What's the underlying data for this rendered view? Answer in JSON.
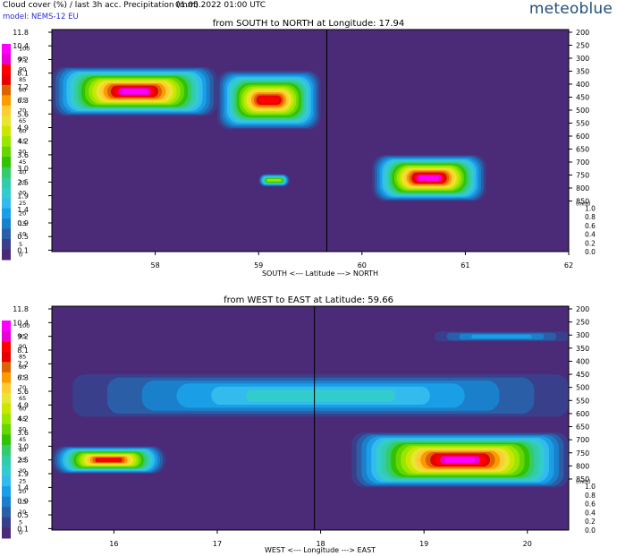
{
  "header": {
    "title": "Cloud cover (%) / last 3h acc. Precipitation (mm)",
    "datetime": "01.05.2022  01:00 UTC",
    "model": "model: NEMS-12 EU",
    "brand": "meteoblue"
  },
  "legend": {
    "levels": [
      "100",
      "95",
      "90",
      "85",
      "80",
      "75",
      "70",
      "65",
      "60",
      "55",
      "50",
      "45",
      "40",
      "35",
      "30",
      "25",
      "20",
      "15",
      "10",
      "5",
      "0"
    ],
    "colors": [
      "#ff00ff",
      "#e600d2",
      "#ff0000",
      "#e80000",
      "#dc6400",
      "#ff9900",
      "#ffcc33",
      "#e6e633",
      "#cce600",
      "#99e600",
      "#66d600",
      "#33c200",
      "#33cc66",
      "#33ccaa",
      "#33cccc",
      "#33bbee",
      "#1a9fe6",
      "#1a80cc",
      "#2a5fa8",
      "#3a3f8c",
      "#4b2a78"
    ]
  },
  "altitude_levels_km": [
    "11.8",
    "10.4",
    "9.2",
    "8.1",
    "7.2",
    "6.3",
    "5.6",
    "4.9",
    "4.2",
    "3.6",
    "3.0",
    "2.5",
    "1.9",
    "1.4",
    "0.9",
    "0.5",
    "0.1"
  ],
  "pressure_levels_hpa": [
    "200",
    "250",
    "300",
    "350",
    "400",
    "450",
    "500",
    "550",
    "600",
    "650",
    "700",
    "750",
    "800",
    "850"
  ],
  "precip_scale": {
    "unit": "(mm)",
    "ticks": [
      "1.0",
      "0.8",
      "0.6",
      "0.4",
      "0.2",
      "0.0"
    ]
  },
  "colors": {
    "background": "#4b2a78",
    "axis": "#000000"
  },
  "chart_data": [
    {
      "type": "heatmap",
      "title": "from SOUTH to NORTH at Longitude:  17.94",
      "xlabel": "SOUTH <---    Latitude    ---> NORTH",
      "x_ticks": [
        "58",
        "59",
        "60",
        "61",
        "62"
      ],
      "x_range": [
        57.0,
        62.0
      ],
      "marker_x": 59.66,
      "cloud_features": [
        {
          "lat_from": 57.0,
          "lat_to": 58.6,
          "alt_from_km": 5.5,
          "alt_to_km": 8.6,
          "max_cover": 100
        },
        {
          "lat_from": 58.6,
          "lat_to": 59.6,
          "alt_from_km": 4.8,
          "alt_to_km": 8.3,
          "max_cover": 90
        },
        {
          "lat_from": 59.0,
          "lat_to": 59.3,
          "alt_from_km": 2.3,
          "alt_to_km": 2.8,
          "max_cover": 55
        },
        {
          "lat_from": 60.1,
          "lat_to": 61.2,
          "alt_from_km": 1.7,
          "alt_to_km": 3.6,
          "max_cover": 100
        }
      ]
    },
    {
      "type": "heatmap",
      "title": "from WEST to EAST at Latitude:  59.66",
      "xlabel": "WEST <---    Longitude    ---> EAST",
      "x_ticks": [
        "16",
        "17",
        "18",
        "19",
        "20"
      ],
      "x_range": [
        15.4,
        20.4
      ],
      "marker_x": 17.94,
      "cloud_features": [
        {
          "lon_from": 15.6,
          "lon_to": 20.4,
          "alt_from_km": 4.3,
          "alt_to_km": 6.5,
          "max_cover": 30
        },
        {
          "lon_from": 15.4,
          "lon_to": 16.5,
          "alt_from_km": 1.9,
          "alt_to_km": 3.0,
          "max_cover": 90
        },
        {
          "lon_from": 18.3,
          "lon_to": 20.4,
          "alt_from_km": 1.4,
          "alt_to_km": 3.6,
          "max_cover": 100
        },
        {
          "lon_from": 19.1,
          "lon_to": 20.4,
          "alt_from_km": 8.8,
          "alt_to_km": 9.6,
          "max_cover": 20
        }
      ]
    }
  ]
}
